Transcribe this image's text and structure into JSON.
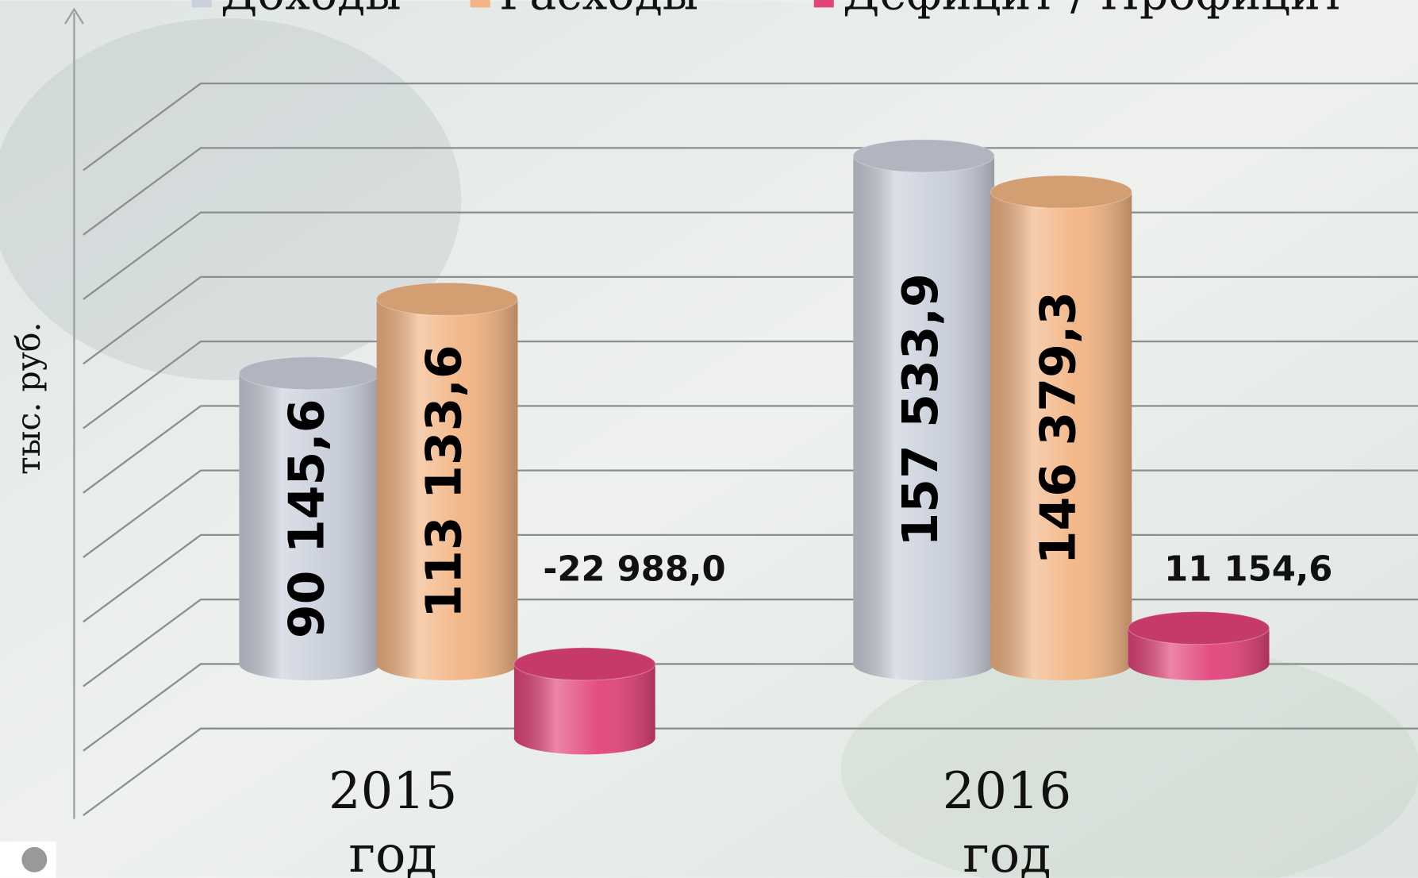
{
  "chart_data": {
    "type": "bar3d",
    "categories": [
      "2015 год",
      "2016 год"
    ],
    "series": [
      {
        "name": "Доходы",
        "color": "#c9cfdb",
        "values": [
          90145.6,
          157533.9
        ],
        "value_labels": [
          "90 145,6",
          "157 533,9"
        ]
      },
      {
        "name": "Расходы",
        "color": "#f2b483",
        "values": [
          113133.6,
          146379.3
        ],
        "value_labels": [
          "113 133,6",
          "146 379,3"
        ]
      },
      {
        "name": "Дефицит / Профицит",
        "color": "#e2437a",
        "values": [
          -22988.0,
          11154.6
        ],
        "value_labels": [
          "-22 988,0",
          "11 154,6"
        ]
      }
    ],
    "y_label": "тыс. руб.",
    "ylim": [
      -20000,
      180000
    ],
    "yticks": [
      -20000,
      0,
      20000,
      40000,
      60000,
      80000,
      100000,
      120000,
      140000,
      160000,
      180000
    ],
    "grid": true
  }
}
